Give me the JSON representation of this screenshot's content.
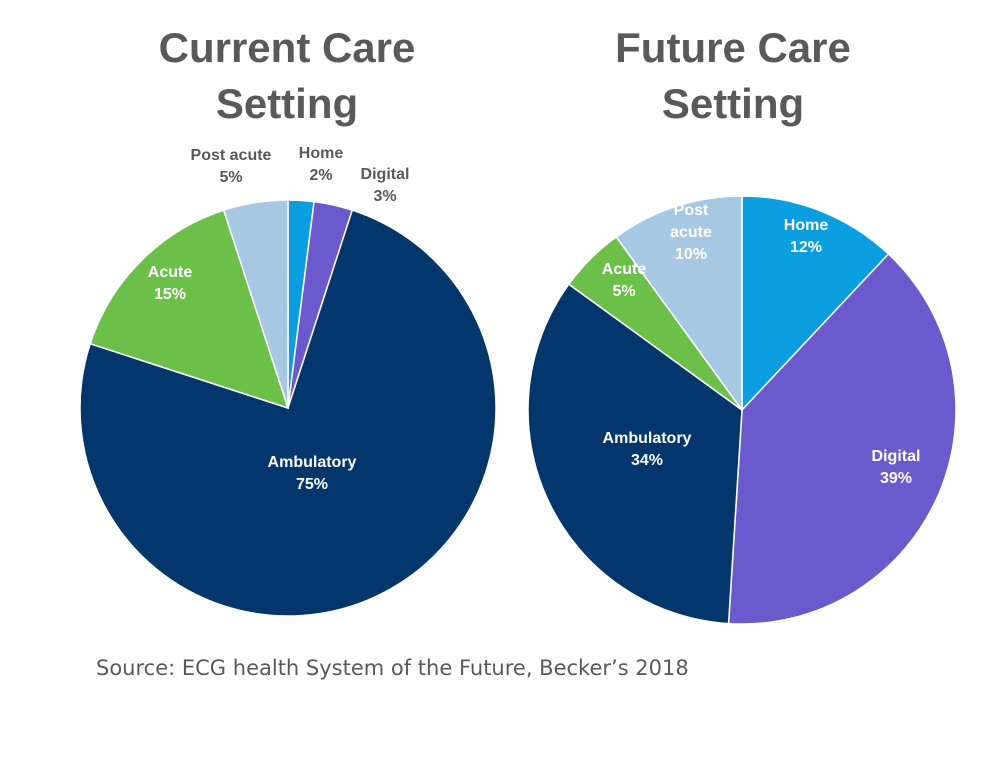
{
  "chart_data": [
    {
      "type": "pie",
      "title_lines": [
        "Current Care",
        "Setting"
      ],
      "slices": [
        {
          "label": "Home",
          "value": 2,
          "value_label": "2%",
          "color": "#0a9de0"
        },
        {
          "label": "Digital",
          "value": 3,
          "value_label": "3%",
          "color": "#6a5acd"
        },
        {
          "label": "Ambulatory",
          "value": 75,
          "value_label": "75%",
          "color": "#03366b"
        },
        {
          "label": "Acute",
          "value": 15,
          "value_label": "15%",
          "color": "#6cc04a"
        },
        {
          "label": "Post acute",
          "value": 5,
          "value_label": "5%",
          "color": "#a6c8e2"
        }
      ]
    },
    {
      "type": "pie",
      "title_lines": [
        "Future Care",
        "Setting"
      ],
      "slices": [
        {
          "label": "Home",
          "value": 12,
          "value_label": "12%",
          "color": "#0a9de0"
        },
        {
          "label": "Digital",
          "value": 39,
          "value_label": "39%",
          "color": "#6a5acd"
        },
        {
          "label": "Ambulatory",
          "value": 34,
          "value_label": "34%",
          "color": "#03366b"
        },
        {
          "label": "Acute",
          "value": 5,
          "value_label": "5%",
          "color": "#6cc04a"
        },
        {
          "label": "Post acute",
          "value": 10,
          "value_label": "10%",
          "color": "#a6c8e2"
        }
      ]
    }
  ],
  "source": "Source: ECG health System of the Future, Becker’s 2018"
}
